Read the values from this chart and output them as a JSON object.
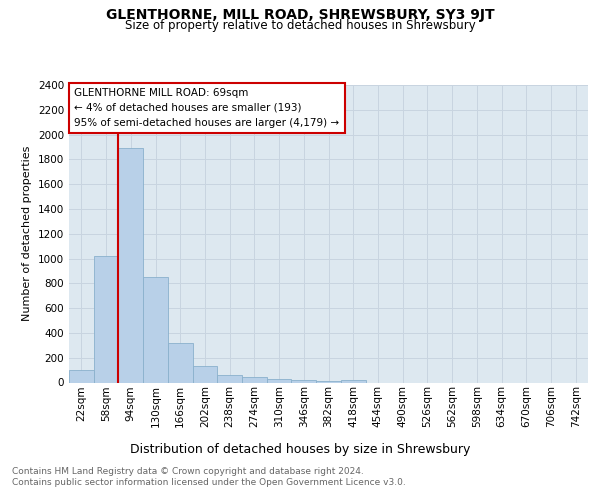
{
  "title": "GLENTHORNE, MILL ROAD, SHREWSBURY, SY3 9JT",
  "subtitle": "Size of property relative to detached houses in Shrewsbury",
  "xlabel": "Distribution of detached houses by size in Shrewsbury",
  "ylabel": "Number of detached properties",
  "bar_color": "#b8d0e8",
  "bar_edge_color": "#8ab0cc",
  "categories": [
    "22sqm",
    "58sqm",
    "94sqm",
    "130sqm",
    "166sqm",
    "202sqm",
    "238sqm",
    "274sqm",
    "310sqm",
    "346sqm",
    "382sqm",
    "418sqm",
    "454sqm",
    "490sqm",
    "526sqm",
    "562sqm",
    "598sqm",
    "634sqm",
    "670sqm",
    "706sqm",
    "742sqm"
  ],
  "values": [
    100,
    1020,
    1890,
    855,
    320,
    130,
    60,
    45,
    30,
    20,
    15,
    20,
    0,
    0,
    0,
    0,
    0,
    0,
    0,
    0,
    0
  ],
  "annotation_text": "GLENTHORNE MILL ROAD: 69sqm\n← 4% of detached houses are smaller (193)\n95% of semi-detached houses are larger (4,179) →",
  "annotation_box_color": "#ffffff",
  "annotation_box_edge": "#cc0000",
  "vline_color": "#cc0000",
  "vline_x_index": 1.5,
  "ylim": [
    0,
    2400
  ],
  "yticks": [
    0,
    200,
    400,
    600,
    800,
    1000,
    1200,
    1400,
    1600,
    1800,
    2000,
    2200,
    2400
  ],
  "grid_color": "#c8d4e0",
  "bg_color": "#dde8f0",
  "footer_text": "Contains HM Land Registry data © Crown copyright and database right 2024.\nContains public sector information licensed under the Open Government Licence v3.0.",
  "title_fontsize": 10,
  "subtitle_fontsize": 8.5,
  "xlabel_fontsize": 9,
  "ylabel_fontsize": 8,
  "tick_fontsize": 7.5,
  "annotation_fontsize": 7.5,
  "footer_fontsize": 6.5
}
